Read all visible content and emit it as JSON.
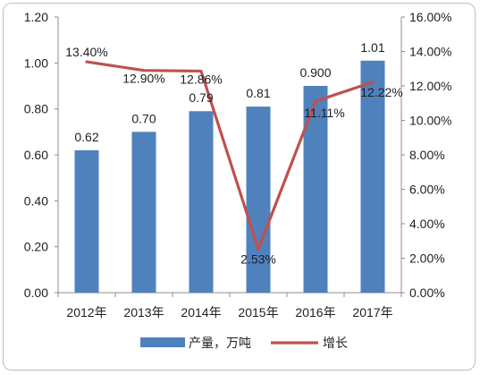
{
  "chart_data": {
    "type": "bar+line",
    "categories": [
      "2012年",
      "2013年",
      "2014年",
      "2015年",
      "2016年",
      "2017年"
    ],
    "series": [
      {
        "name": "产量，万吨",
        "type": "bar",
        "axis": "left",
        "values": [
          0.62,
          0.7,
          0.79,
          0.81,
          0.9,
          1.01
        ],
        "labels": [
          "0.62",
          "0.70",
          "0.79",
          "0.81",
          "0.900",
          "1.01"
        ],
        "color": "#4f81bd"
      },
      {
        "name": "增长",
        "type": "line",
        "axis": "right",
        "values": [
          13.4,
          12.9,
          12.86,
          2.53,
          11.11,
          12.22
        ],
        "labels": [
          "13.40%",
          "12.90%",
          "12.86%",
          "2.53%",
          "11.11%",
          "12.22%"
        ],
        "color": "#c0504d"
      }
    ],
    "y_left": {
      "ylim": [
        0,
        1.2
      ],
      "ticks": [
        "0.00",
        "0.20",
        "0.40",
        "0.60",
        "0.80",
        "1.00",
        "1.20"
      ]
    },
    "y_right": {
      "ylim": [
        0,
        16
      ],
      "ticks": [
        "0.00%",
        "2.00%",
        "4.00%",
        "6.00%",
        "8.00%",
        "10.00%",
        "12.00%",
        "14.00%",
        "16.00%"
      ]
    },
    "grid": false,
    "legend_position": "bottom"
  }
}
